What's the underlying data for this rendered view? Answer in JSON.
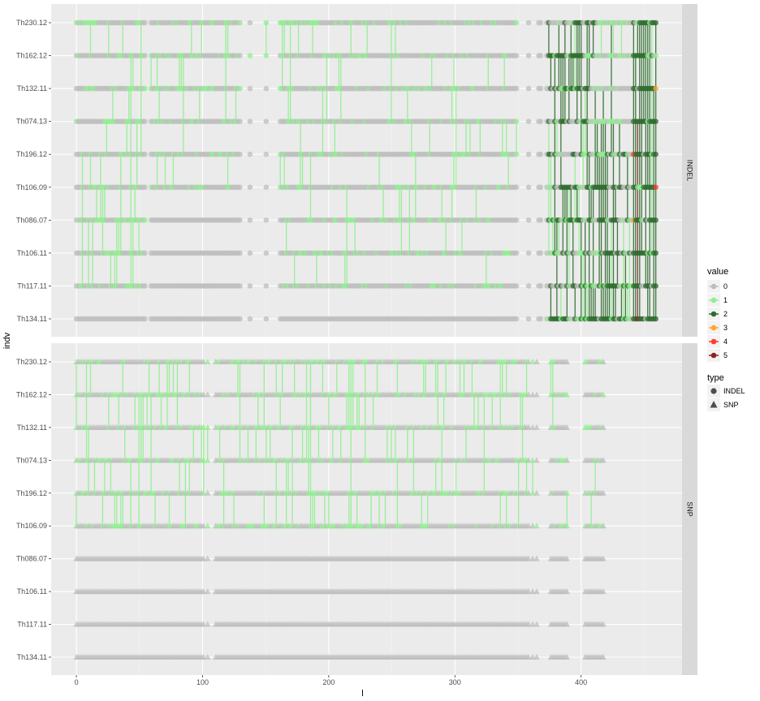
{
  "chart_data": {
    "type": "scatter",
    "xlabel": "l",
    "ylabel": "indv",
    "xlim": [
      -20,
      480
    ],
    "x_ticks": [
      0,
      100,
      200,
      300,
      400
    ],
    "individuals": [
      "Th134.11",
      "Th117.11",
      "Th106.11",
      "Th086.07",
      "Th106.09",
      "Th196.12",
      "Th074.13",
      "Th132.11",
      "Th162.12",
      "Th230.12"
    ],
    "facets": [
      {
        "name": "INDEL",
        "x_max": 460,
        "segments": [
          {
            "x": [
              0,
              55
            ],
            "v": [
              0,
              1,
              1,
              1,
              1,
              1,
              1,
              1,
              1,
              1
            ],
            "mix": [
              0.35,
              0.35,
              0.35,
              0.35,
              0.3,
              0.3,
              0.25,
              0.25,
              0.25,
              0.25
            ]
          },
          {
            "x": [
              56,
              160
            ],
            "v": [
              0,
              0,
              0,
              0,
              1,
              1,
              1,
              1,
              1,
              1
            ],
            "mix": [
              0.05,
              0.05,
              0.05,
              0.05,
              0.25,
              0.25,
              0.25,
              0.25,
              0.25,
              0.25
            ]
          },
          {
            "x": [
              161,
              230
            ],
            "v": [
              0,
              1,
              1,
              1,
              1,
              1,
              1,
              1,
              1,
              1
            ],
            "mix": [
              0.25,
              0.25,
              0.25,
              0.25,
              0.2,
              0.2,
              0.25,
              0.25,
              0.25,
              0.25
            ]
          },
          {
            "x": [
              231,
              350
            ],
            "v": [
              0,
              1,
              1,
              1,
              1,
              1,
              1,
              1,
              1,
              1
            ],
            "mix": [
              0.2,
              0.2,
              0.2,
              0.2,
              0.15,
              0.15,
              0.15,
              0.15,
              0.15,
              0.15
            ]
          },
          {
            "x": [
              355,
              420
            ],
            "v": [
              0,
              0,
              0,
              0,
              0,
              0,
              0,
              0,
              0,
              0
            ],
            "mix": [
              0.0,
              0.0,
              0.0,
              0.0,
              0.0,
              0.0,
              0.0,
              0.0,
              0.0,
              0.0
            ]
          },
          {
            "x": [
              373,
              415
            ],
            "v": [
              2,
              2,
              2,
              2,
              2,
              2,
              2,
              2,
              2,
              2
            ],
            "mix": [
              0.35,
              0.35,
              0.35,
              0.35,
              0.35,
              0.35,
              0.35,
              0.35,
              0.35,
              0.35
            ]
          },
          {
            "x": [
              416,
              440
            ],
            "v": [
              2,
              2,
              2,
              2,
              2,
              2,
              1,
              1,
              1,
              1
            ],
            "mix": [
              0.45,
              0.45,
              0.45,
              0.45,
              0.45,
              0.45,
              0.45,
              0.45,
              0.45,
              0.45
            ]
          },
          {
            "x": [
              441,
              462
            ],
            "v": [
              2,
              2,
              2,
              2,
              2,
              2,
              2,
              2,
              2,
              2
            ],
            "mix": [
              0.65,
              0.65,
              0.65,
              0.65,
              0.65,
              0.65,
              0.65,
              0.65,
              0.65,
              0.65
            ]
          }
        ],
        "gaps": [
          [
            56,
            58
          ],
          [
            130,
            160
          ],
          [
            350,
            372
          ]
        ]
      },
      {
        "name": "SNP",
        "x_max": 418,
        "segments": [
          {
            "x": [
              0,
              90
            ],
            "v": [
              0,
              0,
              0,
              0,
              1,
              1,
              1,
              1,
              1,
              1
            ],
            "mix": [
              0.3,
              0.3,
              0.3,
              0.3,
              0.3,
              0.3,
              0.3,
              0.3,
              0.3,
              0.3
            ]
          },
          {
            "x": [
              91,
              240
            ],
            "v": [
              0,
              0,
              0,
              0,
              1,
              1,
              1,
              1,
              1,
              1
            ],
            "mix": [
              0.35,
              0.35,
              0.35,
              0.35,
              0.35,
              0.35,
              0.35,
              0.35,
              0.35,
              0.35
            ]
          },
          {
            "x": [
              241,
              420
            ],
            "v": [
              0,
              0,
              0,
              0,
              1,
              1,
              1,
              1,
              1,
              1
            ],
            "mix": [
              0.3,
              0.3,
              0.3,
              0.3,
              0.3,
              0.3,
              0.3,
              0.3,
              0.3,
              0.3
            ]
          }
        ],
        "gaps": [
          [
            100,
            110
          ],
          [
            360,
            375
          ],
          [
            390,
            402
          ]
        ]
      }
    ],
    "legend_value": {
      "title": "value",
      "entries": [
        {
          "label": "0",
          "color": "#bebebe"
        },
        {
          "label": "1",
          "color": "#90ee90"
        },
        {
          "label": "2",
          "color": "#2e6b2e"
        },
        {
          "label": "3",
          "color": "#ffa530"
        },
        {
          "label": "4",
          "color": "#ff3b2f"
        },
        {
          "label": "5",
          "color": "#8b2323"
        }
      ]
    },
    "legend_type": {
      "title": "type",
      "entries": [
        {
          "label": "INDEL",
          "shape": "circle"
        },
        {
          "label": "SNP",
          "shape": "triangle"
        }
      ]
    },
    "grid": true,
    "legend_position": "right"
  }
}
